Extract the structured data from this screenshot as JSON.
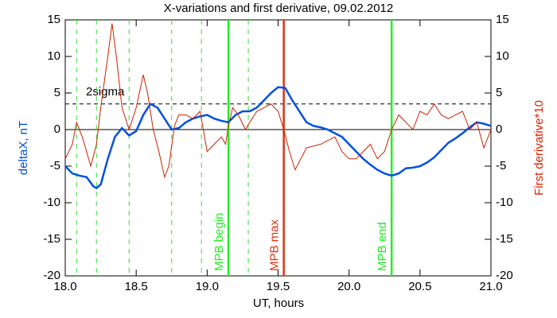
{
  "chart_data": {
    "type": "line",
    "title": "X-variations and first derivative, 09.02.2012",
    "x_label": "UT, hours",
    "y_label": "deltaX, nT",
    "y2_label": "First derivative*10",
    "xlim": [
      18,
      21
    ],
    "ylim": [
      -20,
      15
    ],
    "y2lim": [
      -20,
      15
    ],
    "xticks": [
      {
        "value": 18,
        "label": "18.0"
      },
      {
        "value": 18.5,
        "label": "18.5"
      },
      {
        "value": 19,
        "label": "19.0"
      },
      {
        "value": 19.5,
        "label": "19.5"
      },
      {
        "value": 20,
        "label": "20.0"
      },
      {
        "value": 20.5,
        "label": "20.5"
      },
      {
        "value": 21,
        "label": "21.0"
      }
    ],
    "yticks": [
      15,
      10,
      5,
      0,
      -5,
      -10,
      -15,
      -20
    ],
    "y2ticks": [
      15,
      10,
      5,
      0,
      -5,
      -10,
      -15,
      -20
    ],
    "series": [
      {
        "color": "#0050e0",
        "axis": "y",
        "x": [
          18.0,
          18.05,
          18.1,
          18.15,
          18.2,
          18.22,
          18.25,
          18.3,
          18.35,
          18.4,
          18.45,
          18.5,
          18.55,
          18.6,
          18.65,
          18.7,
          18.75,
          18.8,
          18.85,
          18.9,
          18.95,
          19.0,
          19.05,
          19.1,
          19.15,
          19.2,
          19.25,
          19.3,
          19.35,
          19.4,
          19.45,
          19.5,
          19.55,
          19.6,
          19.65,
          19.7,
          19.75,
          19.8,
          19.85,
          19.9,
          19.95,
          20.0,
          20.05,
          20.1,
          20.15,
          20.2,
          20.25,
          20.3,
          20.35,
          20.4,
          20.45,
          20.5,
          20.55,
          20.6,
          20.65,
          20.7,
          20.75,
          20.8,
          20.85,
          20.9,
          20.95,
          21.0
        ],
        "values": [
          -5,
          -6,
          -6.3,
          -6.5,
          -7.8,
          -8,
          -7.5,
          -4,
          -1,
          0.2,
          -0.8,
          -0.2,
          2,
          3.5,
          3,
          1.5,
          0,
          0.2,
          1,
          1.5,
          1.8,
          2,
          1.5,
          1.2,
          1,
          2,
          2.5,
          2.5,
          3,
          4,
          5,
          5.8,
          5.7,
          4,
          2.5,
          1,
          0.5,
          0.3,
          0,
          -0.5,
          -1,
          -2,
          -3,
          -4,
          -4.8,
          -5.5,
          -6,
          -6.3,
          -6,
          -5.3,
          -5.2,
          -5,
          -4.5,
          -3.8,
          -2.8,
          -1.8,
          -1.2,
          -0.5,
          0.3,
          1,
          0.8,
          0.5
        ]
      },
      {
        "color": "#cc2200",
        "axis": "y2",
        "x": [
          18.0,
          18.05,
          18.08,
          18.12,
          18.18,
          18.22,
          18.25,
          18.3,
          18.33,
          18.36,
          18.4,
          18.45,
          18.5,
          18.55,
          18.58,
          18.62,
          18.66,
          18.7,
          18.73,
          18.77,
          18.8,
          18.85,
          18.9,
          18.95,
          19.0,
          19.05,
          19.1,
          19.13,
          19.15,
          19.18,
          19.22,
          19.27,
          19.3,
          19.35,
          19.4,
          19.45,
          19.5,
          19.54,
          19.58,
          19.62,
          19.66,
          19.7,
          19.8,
          19.9,
          19.95,
          20.0,
          20.05,
          20.1,
          20.15,
          20.2,
          20.25,
          20.3,
          20.35,
          20.4,
          20.45,
          20.5,
          20.55,
          20.6,
          20.65,
          20.7,
          20.75,
          20.8,
          20.85,
          20.9,
          20.95,
          21.0
        ],
        "values": [
          -4,
          -2,
          1,
          -1,
          -5,
          -2,
          3,
          10,
          14.5,
          10,
          3,
          0,
          3,
          7.5,
          5,
          0,
          -3,
          -6.5,
          -5,
          0.5,
          2,
          2,
          1.5,
          2.5,
          -3,
          -2,
          -1,
          -2,
          0.5,
          3,
          2,
          0,
          1,
          2.5,
          3,
          3.5,
          2.5,
          0,
          -3,
          -5.5,
          -4,
          -2.5,
          -2,
          -1,
          -3,
          -4,
          -4,
          -3,
          -2,
          -4,
          -3,
          0,
          2,
          1,
          0,
          2.5,
          2,
          3.5,
          2,
          1.5,
          2,
          2.5,
          0,
          1,
          -2.5,
          0
        ]
      }
    ],
    "markers": [
      {
        "x": 18.08,
        "color": "#33dd33",
        "style": "dashed"
      },
      {
        "x": 18.22,
        "color": "#33dd33",
        "style": "dashed"
      },
      {
        "x": 18.45,
        "color": "#33dd33",
        "style": "dashed"
      },
      {
        "x": 18.75,
        "color": "#33dd33",
        "style": "dashed"
      },
      {
        "x": 18.96,
        "color": "#33dd33",
        "style": "dashed"
      },
      {
        "x": 19.29,
        "color": "#33dd33",
        "style": "dashed"
      },
      {
        "x": 19.15,
        "color": "#22ee22",
        "style": "solid",
        "label": "MPB begin"
      },
      {
        "x": 19.54,
        "color": "#dd3311",
        "style": "solid",
        "label": "MPB max"
      },
      {
        "x": 20.3,
        "color": "#22ee22",
        "style": "solid",
        "label": "MPB end"
      }
    ],
    "hlines": [
      {
        "y": 3.5,
        "style": "dashed",
        "label": "2sigma"
      },
      {
        "y": 0,
        "style": "solid"
      }
    ]
  }
}
